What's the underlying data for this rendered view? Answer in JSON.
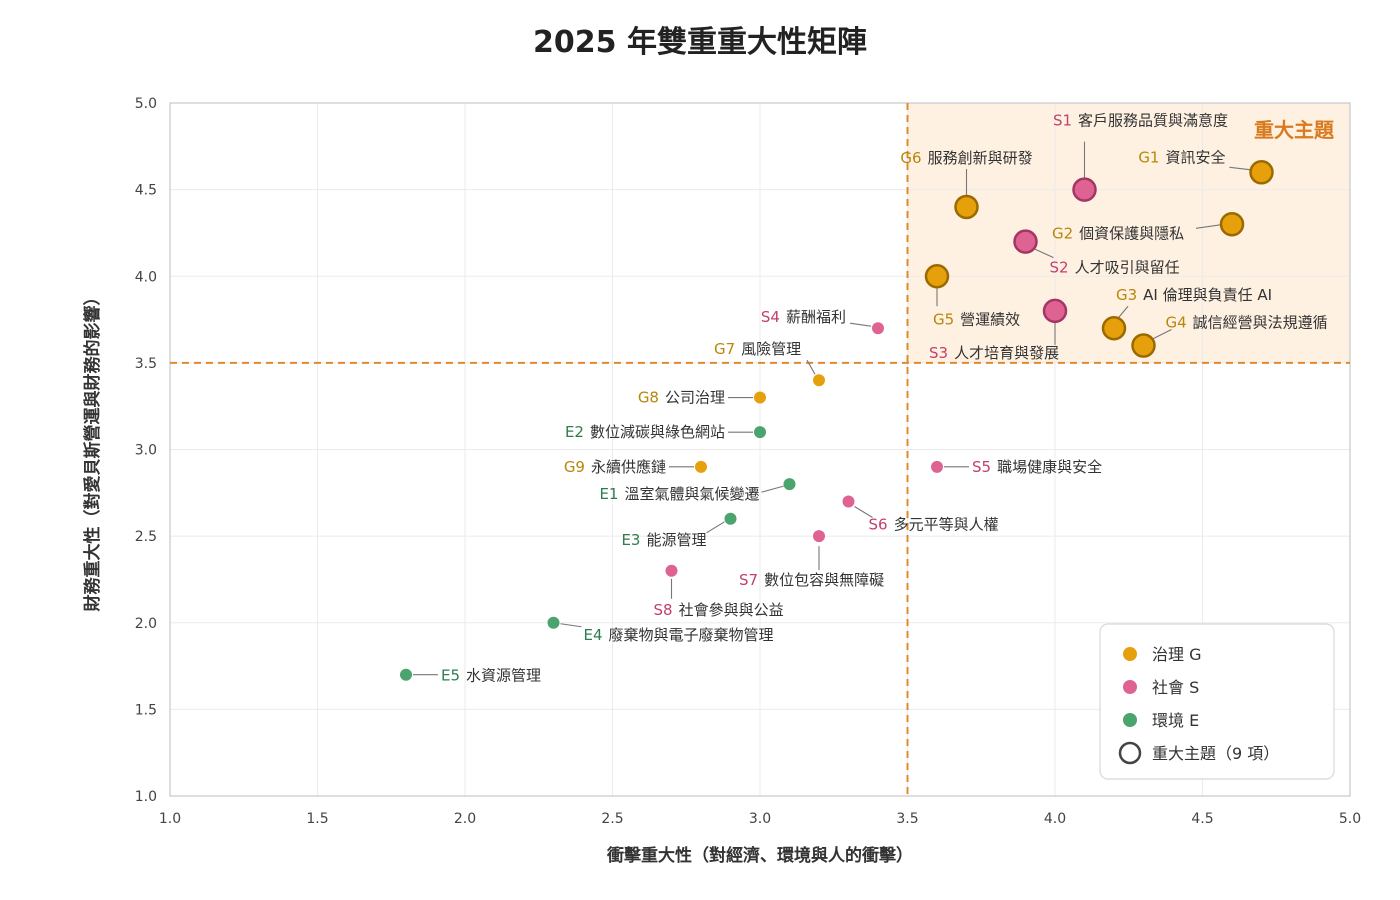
{
  "chart_data": {
    "type": "scatter",
    "title": "2025 年雙重重大性矩陣",
    "xlabel": "衝擊重大性（對經濟、環境與人的衝擊）",
    "ylabel": "財務重大性（對愛貝斯營運與財務的影響）",
    "xlim": [
      1.0,
      5.0
    ],
    "ylim": [
      1.0,
      5.0
    ],
    "x_ticks": [
      "1.0",
      "1.5",
      "2.0",
      "2.5",
      "3.0",
      "3.5",
      "4.0",
      "4.5",
      "5.0"
    ],
    "y_ticks": [
      "1.0",
      "1.5",
      "2.0",
      "2.5",
      "3.0",
      "3.5",
      "4.0",
      "4.5",
      "5.0"
    ],
    "threshold": {
      "x": 3.5,
      "y": 3.5
    },
    "grid": true,
    "quadrant_label": "重大主題",
    "legend": {
      "position": "bottom-right",
      "items": [
        {
          "key": "G",
          "label": "治理 G"
        },
        {
          "key": "S",
          "label": "社會 S"
        },
        {
          "key": "E",
          "label": "環境 E"
        },
        {
          "key": "major",
          "label": "重大主題（9 項）"
        }
      ]
    },
    "colors": {
      "G": "#E6A00B",
      "S": "#DF6392",
      "E": "#4BA36D",
      "G_text": "#B8860B",
      "S_text": "#C2406F",
      "E_text": "#2E7D4F",
      "threshold": "#E08A2E",
      "quadrant_fill": "#FEF1E2"
    },
    "points": [
      {
        "id": "G1",
        "name": "資訊安全",
        "group": "G",
        "x": 4.7,
        "y": 4.6,
        "major": true
      },
      {
        "id": "S1",
        "name": "客戶服務品質與滿意度",
        "group": "S",
        "x": 4.1,
        "y": 4.5,
        "major": true
      },
      {
        "id": "G6",
        "name": "服務創新與研發",
        "group": "G",
        "x": 3.7,
        "y": 4.4,
        "major": true
      },
      {
        "id": "G2",
        "name": "個資保護與隱私",
        "group": "G",
        "x": 4.6,
        "y": 4.3,
        "major": true
      },
      {
        "id": "S2",
        "name": "人才吸引與留任",
        "group": "S",
        "x": 3.9,
        "y": 4.2,
        "major": true
      },
      {
        "id": "G5",
        "name": "營運績效",
        "group": "G",
        "x": 3.6,
        "y": 4.0,
        "major": true
      },
      {
        "id": "S3",
        "name": "人才培育與發展",
        "group": "S",
        "x": 4.0,
        "y": 3.8,
        "major": true
      },
      {
        "id": "G3",
        "name": "AI 倫理與負責任 AI",
        "group": "G",
        "x": 4.2,
        "y": 3.7,
        "major": true
      },
      {
        "id": "G4",
        "name": "誠信經營與法規遵循",
        "group": "G",
        "x": 4.3,
        "y": 3.6,
        "major": true
      },
      {
        "id": "S4",
        "name": "薪酬福利",
        "group": "S",
        "x": 3.4,
        "y": 3.7,
        "major": false
      },
      {
        "id": "G7",
        "name": "風險管理",
        "group": "G",
        "x": 3.2,
        "y": 3.4,
        "major": false
      },
      {
        "id": "G8",
        "name": "公司治理",
        "group": "G",
        "x": 3.0,
        "y": 3.3,
        "major": false
      },
      {
        "id": "E2",
        "name": "數位減碳與綠色網站",
        "group": "E",
        "x": 3.0,
        "y": 3.1,
        "major": false
      },
      {
        "id": "G9",
        "name": "永續供應鏈",
        "group": "G",
        "x": 2.8,
        "y": 2.9,
        "major": false
      },
      {
        "id": "S5",
        "name": "職場健康與安全",
        "group": "S",
        "x": 3.6,
        "y": 2.9,
        "major": false
      },
      {
        "id": "E1",
        "name": "溫室氣體與氣候變遷",
        "group": "E",
        "x": 3.1,
        "y": 2.8,
        "major": false
      },
      {
        "id": "S6",
        "name": "多元平等與人權",
        "group": "S",
        "x": 3.3,
        "y": 2.7,
        "major": false
      },
      {
        "id": "E3",
        "name": "能源管理",
        "group": "E",
        "x": 2.9,
        "y": 2.6,
        "major": false
      },
      {
        "id": "S7",
        "name": "數位包容與無障礙",
        "group": "S",
        "x": 3.2,
        "y": 2.5,
        "major": false
      },
      {
        "id": "S8",
        "name": "社會參與與公益",
        "group": "S",
        "x": 2.7,
        "y": 2.3,
        "major": false
      },
      {
        "id": "E4",
        "name": "廢棄物與電子廢棄物管理",
        "group": "E",
        "x": 2.3,
        "y": 2.0,
        "major": false
      },
      {
        "id": "E5",
        "name": "水資源管理",
        "group": "E",
        "x": 1.8,
        "y": 1.7,
        "major": false
      }
    ]
  }
}
